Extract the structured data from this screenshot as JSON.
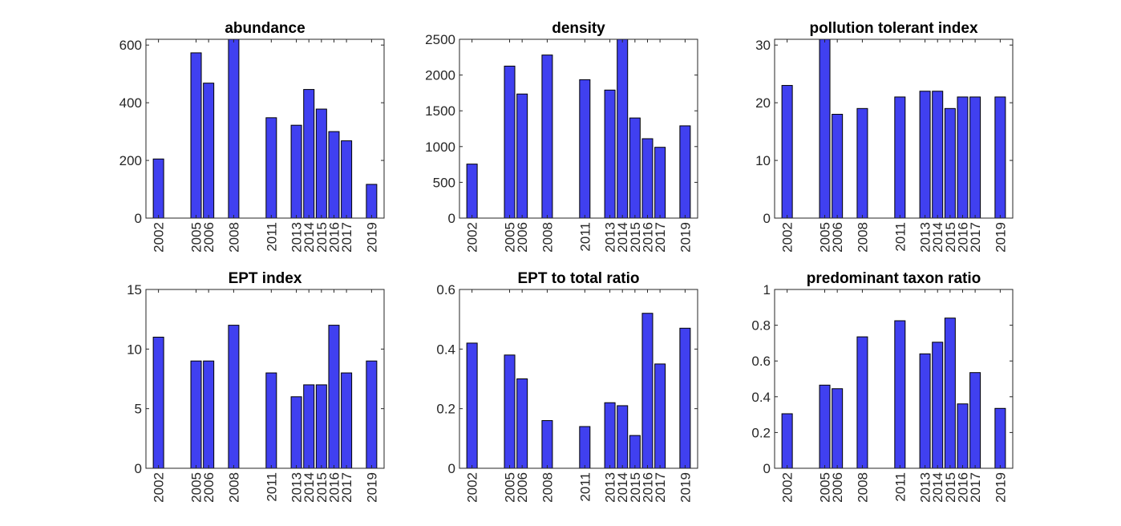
{
  "colors": {
    "bar": "#4040f0",
    "bar_edge": "#000000",
    "axis": "#262626"
  },
  "chart_data": [
    {
      "type": "bar",
      "title": "abundance",
      "categories": [
        2002,
        2005,
        2006,
        2008,
        2011,
        2013,
        2014,
        2015,
        2016,
        2017,
        2019
      ],
      "values": [
        205,
        573,
        468,
        625,
        348,
        322,
        446,
        378,
        300,
        268,
        117
      ],
      "xlim": [
        2001,
        2020
      ],
      "ylim": [
        0,
        620
      ],
      "yticks": [
        0,
        200,
        400,
        600
      ],
      "xlabel": "",
      "ylabel": "",
      "grid": false,
      "legend": false
    },
    {
      "type": "bar",
      "title": "density",
      "categories": [
        2002,
        2005,
        2006,
        2008,
        2011,
        2013,
        2014,
        2015,
        2016,
        2017,
        2019
      ],
      "values": [
        755,
        2125,
        1735,
        2280,
        1935,
        1790,
        2510,
        1400,
        1110,
        990,
        1290
      ],
      "xlim": [
        2001,
        2020
      ],
      "ylim": [
        0,
        2500
      ],
      "yticks": [
        0,
        500,
        1000,
        1500,
        2000,
        2500
      ],
      "xlabel": "",
      "ylabel": "",
      "grid": false,
      "legend": false
    },
    {
      "type": "bar",
      "title": "pollution tolerant index",
      "categories": [
        2002,
        2005,
        2006,
        2008,
        2011,
        2013,
        2014,
        2015,
        2016,
        2017,
        2019
      ],
      "values": [
        23,
        31,
        18,
        19,
        21,
        22,
        22,
        19,
        21,
        21,
        21
      ],
      "xlim": [
        2001,
        2020
      ],
      "ylim": [
        0,
        31
      ],
      "yticks": [
        0,
        10,
        20,
        30
      ],
      "xlabel": "",
      "ylabel": "",
      "grid": false,
      "legend": false
    },
    {
      "type": "bar",
      "title": "EPT index",
      "categories": [
        2002,
        2005,
        2006,
        2008,
        2011,
        2013,
        2014,
        2015,
        2016,
        2017,
        2019
      ],
      "values": [
        11,
        9,
        9,
        12,
        8,
        6,
        7,
        7,
        12,
        8,
        9
      ],
      "xlim": [
        2001,
        2020
      ],
      "ylim": [
        0,
        15
      ],
      "yticks": [
        0,
        5,
        10,
        15
      ],
      "xlabel": "",
      "ylabel": "",
      "grid": false,
      "legend": false
    },
    {
      "type": "bar",
      "title": "EPT to total ratio",
      "categories": [
        2002,
        2005,
        2006,
        2008,
        2011,
        2013,
        2014,
        2015,
        2016,
        2017,
        2019
      ],
      "values": [
        0.42,
        0.38,
        0.3,
        0.16,
        0.14,
        0.22,
        0.21,
        0.11,
        0.52,
        0.35,
        0.47
      ],
      "xlim": [
        2001,
        2020
      ],
      "ylim": [
        0,
        0.6
      ],
      "yticks": [
        0,
        0.2,
        0.4,
        0.6
      ],
      "xlabel": "",
      "ylabel": "",
      "grid": false,
      "legend": false
    },
    {
      "type": "bar",
      "title": "predominant taxon ratio",
      "categories": [
        2002,
        2005,
        2006,
        2008,
        2011,
        2013,
        2014,
        2015,
        2016,
        2017,
        2019
      ],
      "values": [
        0.305,
        0.465,
        0.445,
        0.735,
        0.825,
        0.64,
        0.705,
        0.84,
        0.36,
        0.535,
        0.335
      ],
      "xlim": [
        2001,
        2020
      ],
      "ylim": [
        0,
        1
      ],
      "yticks": [
        0,
        0.2,
        0.4,
        0.6,
        0.8,
        1
      ],
      "xlabel": "",
      "ylabel": "",
      "grid": false,
      "legend": false
    }
  ]
}
